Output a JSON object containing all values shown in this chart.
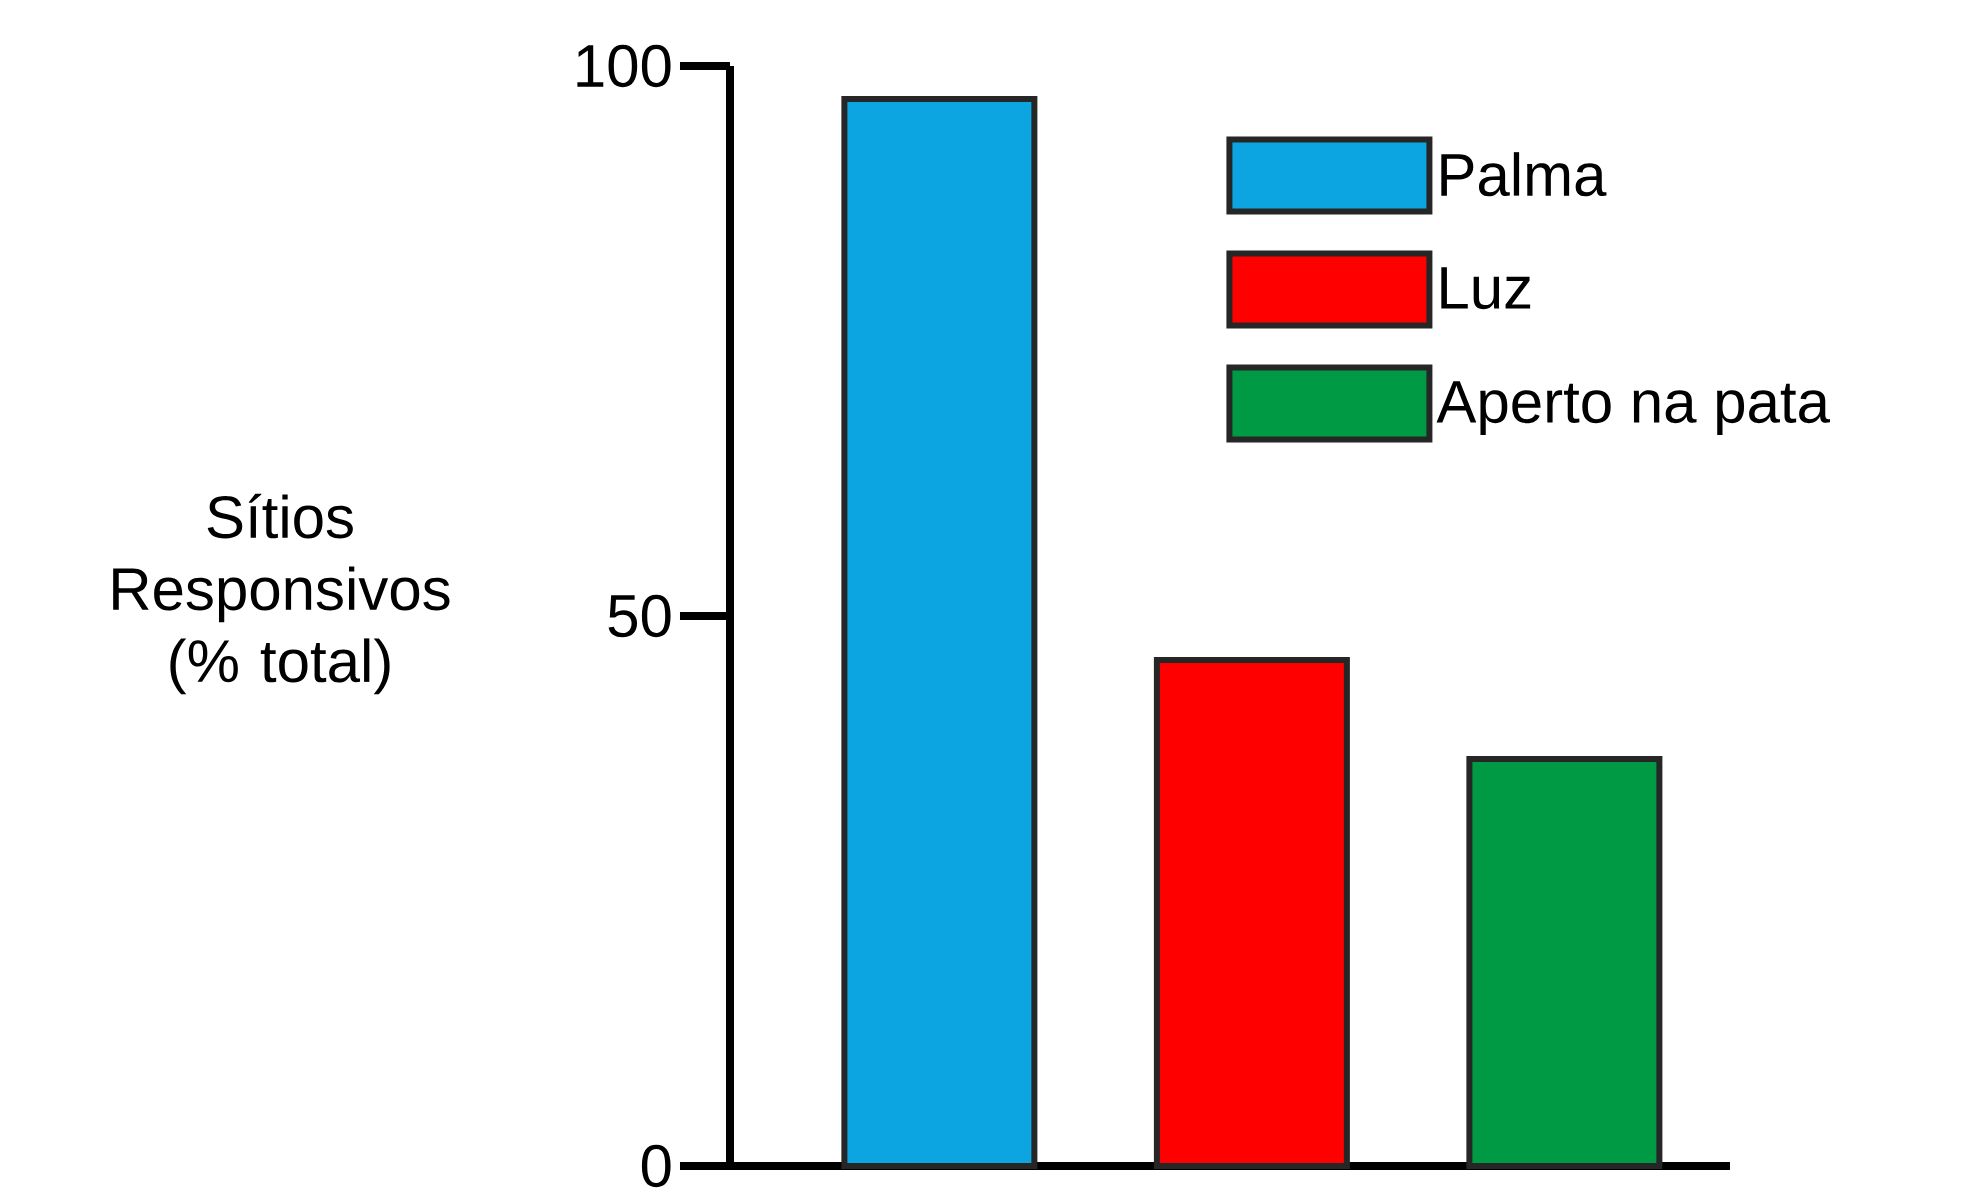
{
  "chart_data": {
    "type": "bar",
    "ylabel": "Sítios Responsivos (% total)",
    "categories": [
      null,
      null,
      null
    ],
    "series": [
      {
        "name": "Palma",
        "color": "#0ca5e2",
        "values": [
          97,
          null,
          null
        ]
      },
      {
        "name": "Luz",
        "color": "#ff0000",
        "values": [
          null,
          46,
          null
        ]
      },
      {
        "name": "Aperto na pata",
        "color": "#009a44",
        "values": [
          null,
          null,
          37
        ]
      }
    ],
    "ylim": [
      0,
      100
    ],
    "yticks": [
      0,
      50,
      100
    ],
    "legend": "top right"
  }
}
